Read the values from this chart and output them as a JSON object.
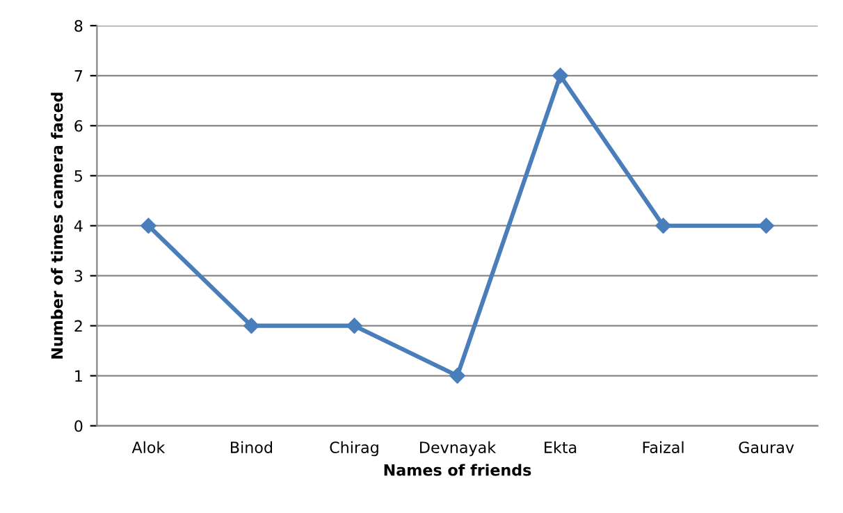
{
  "chart_data": {
    "type": "line",
    "xlabel": "Names of friends",
    "ylabel": "Number of times camera faced",
    "categories": [
      "Alok",
      "Binod",
      "Chirag",
      "Devnayak",
      "Ekta",
      "Faizal",
      "Gaurav"
    ],
    "series": [
      {
        "color": "#4a7ebb",
        "values": [
          4,
          2,
          2,
          1,
          7,
          4,
          4
        ]
      }
    ],
    "ylim": [
      0,
      8
    ],
    "yticks": [
      0,
      1,
      2,
      3,
      4,
      5,
      6,
      7,
      8
    ],
    "grid": "y",
    "marker": "diamond",
    "line_style": "solid"
  }
}
